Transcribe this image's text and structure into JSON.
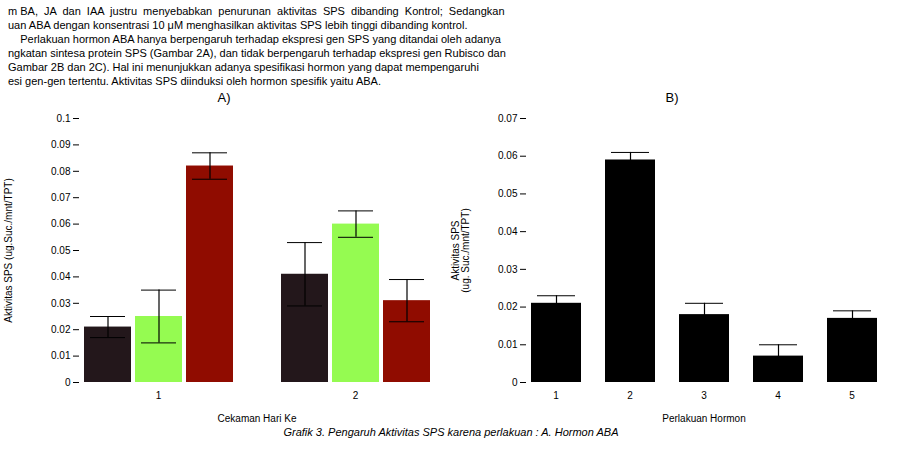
{
  "chart_data": [
    {
      "type": "bar",
      "title": "A)",
      "xlabel": "Cekaman Hari Ke",
      "ylabel": "Aktivitas SPS (ug.Suc./mnt/TPT)",
      "categories": [
        "1",
        "2"
      ],
      "series": [
        {
          "values": [
            0.021,
            0.041
          ],
          "errors": [
            0.004,
            0.012
          ]
        },
        {
          "values": [
            0.025,
            0.06
          ],
          "errors": [
            0.01,
            0.005
          ]
        },
        {
          "values": [
            0.082,
            0.031
          ],
          "errors": [
            0.005,
            0.008
          ]
        }
      ],
      "ylim": [
        0,
        0.1
      ],
      "yticks": [
        0,
        0.01,
        0.02,
        0.03,
        0.04,
        0.05,
        0.06,
        0.07,
        0.08,
        0.09,
        0.1
      ]
    },
    {
      "type": "bar",
      "title": "B)",
      "xlabel": "Perlakuan Hormon",
      "ylabel": "Aktivitas SPS\n(ug. Suc./mnt/TPT)",
      "categories": [
        "1",
        "2",
        "3",
        "4",
        "5"
      ],
      "values": [
        0.021,
        0.059,
        0.018,
        0.007,
        0.017
      ],
      "errors": [
        0.002,
        0.002,
        0.003,
        0.003,
        0.002
      ],
      "ylim": [
        0,
        0.07
      ],
      "yticks": [
        0,
        0.01,
        0.02,
        0.03,
        0.04,
        0.05,
        0.06,
        0.07
      ]
    }
  ],
  "annotations": [
    "m BA,  JA  dan  IAA  justru  menyebabkan  penurunan  aktivitas  SPS  dibanding  Kontrol;  Sedangkan",
    "uan ABA dengan konsentrasi 10 μM menghasilkan aktivitas SPS lebih tinggi dibanding kontrol.",
    "    Perlakuan hormon ABA hanya berpengaruh terhadap ekspresi gen SPS yang ditandai oleh adanya",
    "ngkatan sintesa protein SPS (Gambar 2A), dan tidak berpengaruh terhadap ekspresi gen Rubisco dan",
    "Gambar 2B dan 2C). Hal ini menunjukkan adanya spesifikasi hormon yang dapat mempengaruhi",
    "esi gen-gen tertentu. Aktivitas SPS diinduksi oleh hormon spesifik yaitu ABA."
  ],
  "caption": "Grafik 3. Pengaruh Aktivitas SPS karena perlakuan : A. Hormon ABA"
}
